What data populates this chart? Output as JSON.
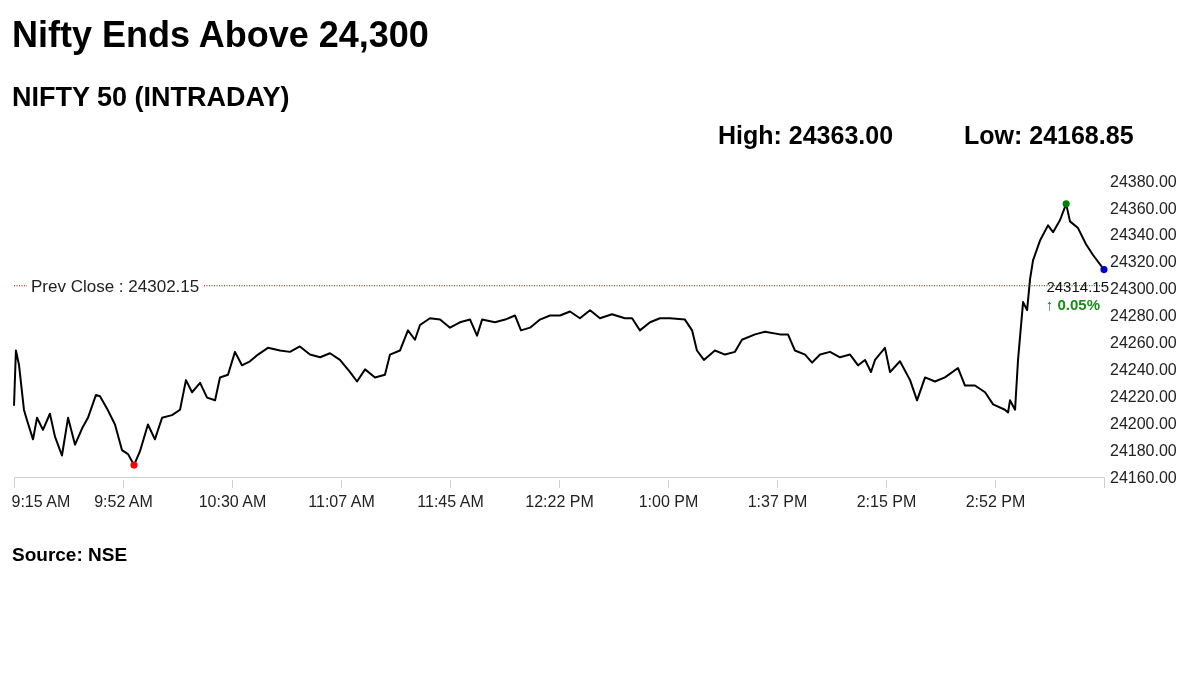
{
  "chart_data": {
    "type": "line",
    "title": "Nifty Ends Above 24,300",
    "subtitle": "NIFTY 50 (INTRADAY)",
    "xlim": [
      9.25,
      15.5
    ],
    "xticks": [
      {
        "value": 9.25,
        "label": "9:15 AM"
      },
      {
        "value": 9.875,
        "label": "9:52 AM"
      },
      {
        "value": 10.5,
        "label": "10:30 AM"
      },
      {
        "value": 11.125,
        "label": "11:07 AM"
      },
      {
        "value": 11.75,
        "label": "11:45 AM"
      },
      {
        "value": 12.375,
        "label": "12:22 PM"
      },
      {
        "value": 13,
        "label": "1:00 PM"
      },
      {
        "value": 13.625,
        "label": "1:37 PM"
      },
      {
        "value": 14.25,
        "label": "2:15 PM"
      },
      {
        "value": 14.875,
        "label": "2:52 PM"
      },
      {
        "value": 15.5,
        "label": null
      }
    ],
    "ylim": [
      24160,
      24380
    ],
    "yticks": [
      {
        "value": 24160,
        "label": "24160.00"
      },
      {
        "value": 24180,
        "label": "24180.00"
      },
      {
        "value": 24200,
        "label": "24200.00"
      },
      {
        "value": 24220,
        "label": "24220.00"
      },
      {
        "value": 24240,
        "label": "24240.00"
      },
      {
        "value": 24260,
        "label": "24260.00"
      },
      {
        "value": 24280,
        "label": "24280.00"
      },
      {
        "value": 24300,
        "label": "24300.00"
      },
      {
        "value": 24320,
        "label": "24320.00"
      },
      {
        "value": 24340,
        "label": "24340.00"
      },
      {
        "value": 24360,
        "label": "24360.00"
      },
      {
        "value": 24380,
        "label": "24380.00"
      }
    ],
    "grid": false,
    "series": [
      {
        "color": "#000000",
        "marker": "none",
        "x": [
          9.25,
          9.261,
          9.279,
          9.307,
          9.325,
          9.359,
          9.382,
          9.416,
          9.456,
          9.485,
          9.525,
          9.56,
          9.6,
          9.64,
          9.674,
          9.72,
          9.743,
          9.783,
          9.829,
          9.869,
          9.904,
          9.938,
          9.972,
          10.018,
          10.058,
          10.099,
          10.156,
          10.202,
          10.236,
          10.271,
          10.317,
          10.357,
          10.403,
          10.431,
          10.477,
          10.517,
          10.557,
          10.603,
          10.649,
          10.706,
          10.775,
          10.832,
          10.889,
          10.947,
          11.005,
          11.062,
          11.119,
          11.177,
          11.217,
          11.263,
          11.32,
          11.377,
          11.406,
          11.463,
          11.509,
          11.549,
          11.578,
          11.635,
          11.693,
          11.75,
          11.807,
          11.865,
          11.905,
          11.934,
          12.008,
          12.066,
          12.123,
          12.157,
          12.209,
          12.266,
          12.323,
          12.381,
          12.438,
          12.495,
          12.553,
          12.61,
          12.679,
          12.753,
          12.794,
          12.839,
          12.897,
          12.954,
          13.011,
          13.097,
          13.138,
          13.166,
          13.206,
          13.269,
          13.327,
          13.384,
          13.424,
          13.499,
          13.556,
          13.642,
          13.688,
          13.728,
          13.786,
          13.826,
          13.872,
          13.929,
          13.986,
          14.044,
          14.09,
          14.13,
          14.164,
          14.187,
          14.244,
          14.273,
          14.33,
          14.388,
          14.428,
          14.474,
          14.531,
          14.588,
          14.663,
          14.703,
          14.76,
          14.818,
          14.864,
          14.932,
          14.95,
          14.961,
          14.99,
          15.007,
          15.036,
          15.059,
          15.076,
          15.093,
          15.134,
          15.179,
          15.208,
          15.248,
          15.283,
          15.305,
          15.351,
          15.397,
          15.437,
          15.5
        ],
        "values": [
          24213,
          24254,
          24243,
          24210,
          24202,
          24188,
          24204,
          24195,
          24207,
          24190,
          24176,
          24204,
          24184,
          24196,
          24204,
          24221,
          24220,
          24211,
          24199,
          24180,
          24177,
          24168.85,
          24179,
          24199,
          24188,
          24204,
          24206,
          24210,
          24232,
          24223,
          24230,
          24219,
          24217,
          24234,
          24236,
          24253,
          24243,
          24246,
          24251,
          24256,
          24254,
          24253,
          24257,
          24251,
          24249,
          24252,
          24247,
          24238,
          24231,
          24240,
          24234,
          24236,
          24251,
          24254,
          24269,
          24262,
          24273,
          24278,
          24277,
          24271,
          24275,
          24277,
          24265,
          24277,
          24275,
          24277,
          24280,
          24269,
          24271,
          24277,
          24280,
          24280,
          24283,
          24278,
          24284,
          24278,
          24281,
          24278,
          24278,
          24269,
          24275,
          24278,
          24278,
          24277,
          24269,
          24254,
          24247,
          24254,
          24251,
          24253,
          24262,
          24266,
          24268,
          24266,
          24266,
          24254,
          24251,
          24245,
          24251,
          24253,
          24249,
          24251,
          24243,
          24247,
          24238,
          24247,
          24256,
          24238,
          24246,
          24232,
          24217,
          24234,
          24231,
          24234,
          24241,
          24228,
          24228,
          24223,
          24214,
          24210,
          24208,
          24217,
          24210,
          24247,
          24290,
          24284,
          24307,
          24321,
          24336,
          24347,
          24342,
          24351,
          24363,
          24350,
          24345,
          24333,
          24325,
          24314.15
        ]
      },
      {
        "type": "scatter",
        "marker": "circle",
        "x": [
          9.938,
          15.283,
          15.5
        ],
        "values": [
          24168.85,
          24363,
          24314.15
        ],
        "colors": [
          "#ff0000",
          "#008000",
          "#0000cc"
        ]
      }
    ],
    "ref_lines": [
      {
        "axis": "y",
        "value": 24302.15,
        "label": "Prev Close : 24302.15",
        "color": "#cc0000",
        "line_style": "dotted"
      }
    ],
    "annotations": [
      "High: 24363.00",
      "Low: 24168.85",
      {
        "text": "24314.15",
        "x": 15.5,
        "y": 24314.15
      },
      "↑ 0.05%",
      "Source: NSE"
    ]
  }
}
